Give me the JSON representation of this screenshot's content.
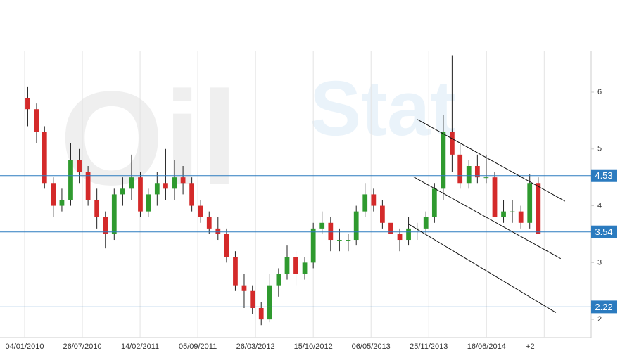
{
  "chart_data": {
    "type": "candlestick",
    "watermark": [
      "Oil",
      "Stat"
    ],
    "xlim": [
      "04/01/2010",
      "19/06/2015"
    ],
    "xticks": [
      "04/01/2010",
      "26/07/2010",
      "14/02/2011",
      "05/09/2011",
      "26/03/2012",
      "15/10/2012",
      "06/05/2013",
      "25/11/2013",
      "16/06/2014",
      {
        "value": "05/01/2015",
        "label": "+2"
      }
    ],
    "ylim": [
      1.68,
      6.73
    ],
    "yticks": [
      2,
      3,
      4,
      5,
      6
    ],
    "grid": true,
    "up_color": "#2f9a2f",
    "down_color": "#d42a2a",
    "x": [
      "15/01/2010",
      "15/02/2010",
      "15/03/2010",
      "15/04/2010",
      "15/05/2010",
      "15/06/2010",
      "15/07/2010",
      "15/08/2010",
      "15/09/2010",
      "15/10/2010",
      "15/11/2010",
      "15/12/2010",
      "15/01/2011",
      "15/02/2011",
      "15/03/2011",
      "15/04/2011",
      "15/05/2011",
      "15/06/2011",
      "15/07/2011",
      "15/08/2011",
      "15/09/2011",
      "15/10/2011",
      "15/11/2011",
      "15/12/2011",
      "15/01/2012",
      "15/02/2012",
      "15/03/2012",
      "15/04/2012",
      "15/05/2012",
      "15/06/2012",
      "15/07/2012",
      "15/08/2012",
      "15/09/2012",
      "15/10/2012",
      "15/11/2012",
      "15/12/2012",
      "15/01/2013",
      "15/02/2013",
      "15/03/2013",
      "15/04/2013",
      "15/05/2013",
      "15/06/2013",
      "15/07/2013",
      "15/08/2013",
      "15/09/2013",
      "15/10/2013",
      "15/11/2013",
      "15/12/2013",
      "15/01/2014",
      "15/02/2014",
      "15/03/2014",
      "15/04/2014",
      "15/05/2014",
      "15/06/2014",
      "15/07/2014",
      "15/08/2014",
      "15/09/2014",
      "15/10/2014",
      "15/11/2014",
      "15/12/2014"
    ],
    "open": [
      5.9,
      5.7,
      5.3,
      4.4,
      4.0,
      4.1,
      4.8,
      4.6,
      4.1,
      3.8,
      3.5,
      4.2,
      4.3,
      4.5,
      3.9,
      4.2,
      4.4,
      4.3,
      4.5,
      4.4,
      4.0,
      3.8,
      3.6,
      3.5,
      3.1,
      2.6,
      2.5,
      2.2,
      2.0,
      2.6,
      2.8,
      3.1,
      2.8,
      3.0,
      3.6,
      3.7,
      3.4,
      3.4,
      3.4,
      3.9,
      4.2,
      4.0,
      3.7,
      3.5,
      3.4,
      3.6,
      3.6,
      3.8,
      4.3,
      5.3,
      4.9,
      4.4,
      4.7,
      4.5,
      4.5,
      3.8,
      3.9,
      3.9,
      3.7,
      4.4
    ],
    "high": [
      6.1,
      5.8,
      5.4,
      4.5,
      4.3,
      5.1,
      5.0,
      4.7,
      4.3,
      3.9,
      4.3,
      4.5,
      4.9,
      4.6,
      4.3,
      4.6,
      5.0,
      4.8,
      4.7,
      4.5,
      4.1,
      3.9,
      3.8,
      3.6,
      3.2,
      2.8,
      2.6,
      2.3,
      2.8,
      2.9,
      3.3,
      3.2,
      3.1,
      3.7,
      3.9,
      3.8,
      3.6,
      3.5,
      4.0,
      4.4,
      4.3,
      4.1,
      3.8,
      3.6,
      3.8,
      3.7,
      3.9,
      4.4,
      5.6,
      6.65,
      5.1,
      4.8,
      4.9,
      4.9,
      4.6,
      4.1,
      4.1,
      4.0,
      4.55,
      4.5
    ],
    "low": [
      5.4,
      5.1,
      4.3,
      3.8,
      3.9,
      4.0,
      4.4,
      4.0,
      3.6,
      3.25,
      3.4,
      4.0,
      4.1,
      3.8,
      3.8,
      4.0,
      4.1,
      4.1,
      4.2,
      3.9,
      3.7,
      3.5,
      3.4,
      3.0,
      2.5,
      2.2,
      2.1,
      1.9,
      1.95,
      2.4,
      2.7,
      2.6,
      2.7,
      2.9,
      3.5,
      3.2,
      3.2,
      3.2,
      3.3,
      3.8,
      3.9,
      3.6,
      3.4,
      3.2,
      3.3,
      3.4,
      3.5,
      3.7,
      4.1,
      4.6,
      4.3,
      4.3,
      4.4,
      4.4,
      3.8,
      3.7,
      3.7,
      3.6,
      3.6,
      3.5
    ],
    "close": [
      5.7,
      5.3,
      4.4,
      4.0,
      4.1,
      4.8,
      4.6,
      4.1,
      3.8,
      3.5,
      4.2,
      4.3,
      4.5,
      3.9,
      4.2,
      4.4,
      4.3,
      4.5,
      4.4,
      4.0,
      3.8,
      3.6,
      3.5,
      3.1,
      2.6,
      2.5,
      2.2,
      2.0,
      2.6,
      2.8,
      3.1,
      2.8,
      3.0,
      3.6,
      3.7,
      3.4,
      3.4,
      3.4,
      3.9,
      4.2,
      4.0,
      3.7,
      3.5,
      3.4,
      3.6,
      3.6,
      3.8,
      4.3,
      5.3,
      4.9,
      4.4,
      4.7,
      4.5,
      4.5,
      3.8,
      3.9,
      3.9,
      3.7,
      4.4,
      3.5
    ],
    "levels": [
      4.53,
      3.54,
      2.22
    ],
    "level_color": "#2b7bbf",
    "trend_lines": [
      {
        "x": [
          "16/10/2013",
          "19/03/2015"
        ],
        "y": [
          5.52,
          4.08
        ]
      },
      {
        "x": [
          "02/10/2013",
          "04/03/2015"
        ],
        "y": [
          4.51,
          3.07
        ]
      },
      {
        "x": [
          "14/09/2013",
          "15/02/2015"
        ],
        "y": [
          3.68,
          2.12
        ]
      }
    ]
  }
}
